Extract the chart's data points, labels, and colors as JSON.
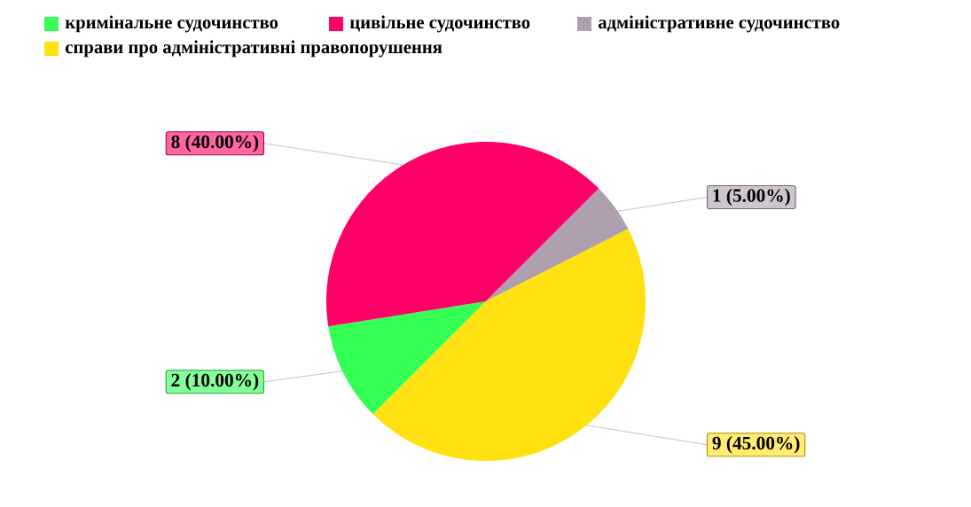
{
  "chart_data": {
    "type": "pie",
    "categories": [
      "кримінальне судочинство",
      "цивільне судочинство",
      "адміністративне судочинство",
      "справи про адміністративні правопорушення"
    ],
    "values": [
      2,
      8,
      1,
      9
    ],
    "colors": [
      "#33ff55",
      "#ff0066",
      "#ad9fad",
      "#ffe010"
    ],
    "value_labels": [
      "2 (10.00%)",
      "8 (40.00%)",
      "1 (5.00%)",
      "9 (45.00%)"
    ],
    "legend": "top"
  }
}
